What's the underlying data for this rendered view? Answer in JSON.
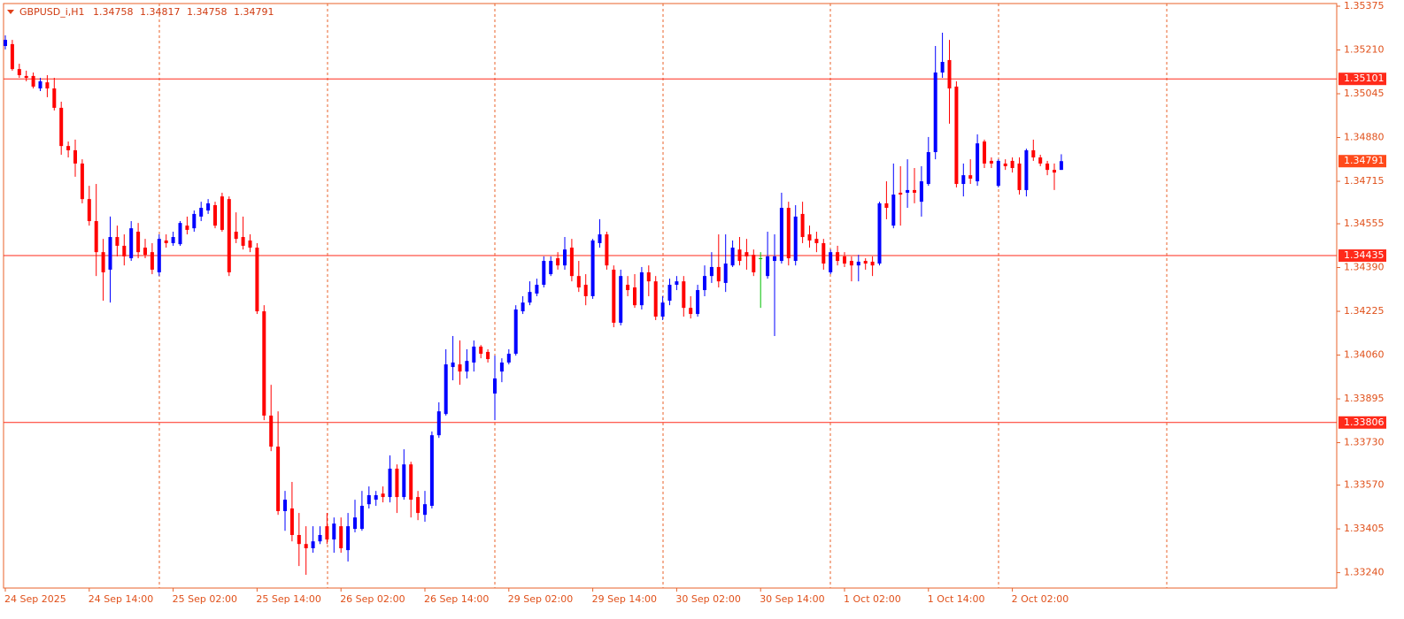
{
  "chart_data": {
    "type": "candlestick",
    "symbol": "GBPUSD_i,H1",
    "categories": [
      "24 Sep 2025",
      null,
      null,
      null,
      null,
      null,
      null,
      null,
      null,
      null,
      null,
      null,
      "24 Sep 14:00",
      null,
      null,
      null,
      null,
      null,
      null,
      null,
      null,
      null,
      null,
      null,
      "25 Sep 02:00",
      null,
      null,
      null,
      null,
      null,
      null,
      null,
      null,
      null,
      null,
      null,
      "25 Sep 14:00",
      null,
      null,
      null,
      null,
      null,
      null,
      null,
      null,
      null,
      null,
      null,
      "26 Sep 02:00",
      null,
      null,
      null,
      null,
      null,
      null,
      null,
      null,
      null,
      null,
      null,
      "26 Sep 14:00",
      null,
      null,
      null,
      null,
      null,
      null,
      null,
      null,
      null,
      null,
      null,
      "29 Sep 02:00",
      null,
      null,
      null,
      null,
      null,
      null,
      null,
      null,
      null,
      null,
      null,
      "29 Sep 14:00",
      null,
      null,
      null,
      null,
      null,
      null,
      null,
      null,
      null,
      null,
      null,
      "30 Sep 02:00",
      null,
      null,
      null,
      null,
      null,
      null,
      null,
      null,
      null,
      null,
      null,
      "30 Sep 14:00",
      null,
      null,
      null,
      null,
      null,
      null,
      null,
      null,
      null,
      null,
      null,
      "1 Oct 02:00",
      null,
      null,
      null,
      null,
      null,
      null,
      null,
      null,
      null,
      null,
      null,
      "1 Oct 14:00",
      null,
      null,
      null,
      null,
      null,
      null,
      null,
      null,
      null,
      null,
      null,
      "2 Oct 02:00",
      null,
      null,
      null,
      null,
      null,
      null,
      null
    ],
    "open": [
      1.35225,
      1.35232,
      1.35138,
      1.35112,
      1.35112,
      1.35065,
      1.35088,
      1.35065,
      1.34992,
      1.34848,
      1.34832,
      1.34782,
      1.34648,
      1.34565,
      1.34448,
      1.34382,
      1.34505,
      1.34472,
      1.34425,
      1.34525,
      1.34465,
      1.34448,
      1.34372,
      1.34492,
      1.34482,
      1.34478,
      1.34548,
      1.34538,
      1.34582,
      1.34605,
      1.34625,
      1.34658,
      1.34648,
      1.34525,
      1.34505,
      1.34492,
      1.34465,
      1.34225,
      1.33832,
      1.33715,
      1.33472,
      1.33482,
      1.33382,
      1.33348,
      1.33332,
      1.33358,
      1.33415,
      1.33365,
      1.33415,
      1.33325,
      1.33405,
      1.33405,
      1.33498,
      1.33515,
      1.33538,
      1.33525,
      1.33632,
      1.33525,
      1.33648,
      1.33525,
      1.33458,
      1.33492,
      1.33758,
      1.33838,
      1.34015,
      1.34025,
      1.33998,
      1.34032,
      1.34092,
      1.34072,
      1.33915,
      1.33998,
      1.34032,
      1.34065,
      1.34225,
      1.34258,
      1.34292,
      1.34325,
      1.34365,
      1.34425,
      1.34398,
      1.34465,
      1.34358,
      1.34325,
      1.34282,
      1.34482,
      1.34515,
      1.34382,
      1.34182,
      1.34325,
      1.34315,
      1.34248,
      1.34372,
      1.34338,
      1.34205,
      1.34265,
      1.34325,
      1.34338,
      1.34238,
      1.34215,
      1.34305,
      1.34358,
      1.34392,
      1.34332,
      1.34398,
      1.34458,
      1.34448,
      1.34438,
      1.34425,
      1.34358,
      1.34415,
      1.34415,
      1.34615,
      1.34415,
      1.34592,
      1.34515,
      1.34498,
      1.34482,
      1.34372,
      1.34448,
      1.34432,
      1.34415,
      1.34398,
      1.34415,
      1.34412,
      1.34405,
      1.34632,
      1.34548,
      1.34672,
      1.34672,
      1.34682,
      1.34638,
      1.34705,
      1.34825,
      1.35125,
      1.35172,
      1.35072,
      1.34705,
      1.34738,
      1.34715,
      1.34865,
      1.34792,
      1.34698,
      1.34782,
      1.34792,
      1.34782,
      1.34682,
      1.34832,
      1.34805,
      1.34782,
      1.34758,
      1.34758
    ],
    "high": [
      1.35265,
      1.35248,
      1.35158,
      1.35132,
      1.35125,
      1.35105,
      1.35115,
      1.35105,
      1.35015,
      1.34865,
      1.34872,
      1.34798,
      1.34698,
      1.34705,
      1.34498,
      1.34582,
      1.34548,
      1.34515,
      1.34565,
      1.34558,
      1.34498,
      1.34482,
      1.34515,
      1.34515,
      1.34525,
      1.34565,
      1.34582,
      1.34605,
      1.34638,
      1.34648,
      1.34638,
      1.34672,
      1.34658,
      1.34598,
      1.34582,
      1.34515,
      1.34482,
      1.34248,
      1.33948,
      1.33848,
      1.33548,
      1.33582,
      1.33465,
      1.33415,
      1.33415,
      1.33415,
      1.33465,
      1.33448,
      1.33448,
      1.33465,
      1.33515,
      1.33548,
      1.33565,
      1.33548,
      1.33565,
      1.33682,
      1.33648,
      1.33705,
      1.33658,
      1.33548,
      1.33548,
      1.33772,
      1.33882,
      1.34082,
      1.34132,
      1.34115,
      1.34082,
      1.34115,
      1.34098,
      1.34082,
      1.34058,
      1.34048,
      1.34082,
      1.34248,
      1.34282,
      1.34338,
      1.34348,
      1.34432,
      1.34432,
      1.34448,
      1.34505,
      1.34498,
      1.34415,
      1.34365,
      1.34498,
      1.34572,
      1.34525,
      1.34398,
      1.34382,
      1.34358,
      1.34365,
      1.34392,
      1.34398,
      1.34358,
      1.34282,
      1.34348,
      1.34358,
      1.34358,
      1.34282,
      1.34325,
      1.34398,
      1.34448,
      1.34515,
      1.34515,
      1.34492,
      1.34505,
      1.34498,
      1.34458,
      1.34448,
      1.34525,
      1.34515,
      1.34672,
      1.34638,
      1.34625,
      1.34638,
      1.34548,
      1.34525,
      1.34498,
      1.34458,
      1.34472,
      1.34448,
      1.34432,
      1.34438,
      1.34425,
      1.34432,
      1.34638,
      1.34715,
      1.34782,
      1.34772,
      1.34798,
      1.34765,
      1.34772,
      1.34882,
      1.35225,
      1.35275,
      1.35248,
      1.35092,
      1.34782,
      1.34798,
      1.34892,
      1.34872,
      1.34805,
      1.34798,
      1.34798,
      1.34805,
      1.34805,
      1.34838,
      1.34872,
      1.34815,
      1.34792,
      1.34782,
      1.34817
    ],
    "low": [
      1.35212,
      1.35132,
      1.35105,
      1.35092,
      1.35065,
      1.35055,
      1.35032,
      1.34982,
      1.34815,
      1.34805,
      1.34732,
      1.34632,
      1.34548,
      1.34358,
      1.34265,
      1.34258,
      1.34432,
      1.34398,
      1.34415,
      1.34425,
      1.34425,
      1.34365,
      1.34358,
      1.34465,
      1.34472,
      1.34472,
      1.34515,
      1.34525,
      1.34565,
      1.34592,
      1.34538,
      1.34525,
      1.34358,
      1.34482,
      1.34458,
      1.34448,
      1.34215,
      1.33815,
      1.33698,
      1.33458,
      1.33398,
      1.33358,
      1.33265,
      1.33232,
      1.33315,
      1.33348,
      1.33348,
      1.33315,
      1.33315,
      1.33282,
      1.33392,
      1.33398,
      1.33482,
      1.33492,
      1.33505,
      1.33505,
      1.33465,
      1.33515,
      1.33448,
      1.33438,
      1.33432,
      1.33482,
      1.33748,
      1.33832,
      1.33965,
      1.33948,
      1.33972,
      1.33998,
      1.34048,
      1.34032,
      1.33815,
      1.33958,
      1.34025,
      1.34058,
      1.34215,
      1.34248,
      1.34282,
      1.34315,
      1.34358,
      1.34382,
      1.34382,
      1.34338,
      1.34298,
      1.34248,
      1.34272,
      1.34465,
      1.34382,
      1.34165,
      1.34172,
      1.34282,
      1.34238,
      1.34232,
      1.34282,
      1.34192,
      1.34192,
      1.34248,
      1.34305,
      1.34205,
      1.34198,
      1.34205,
      1.34282,
      1.34332,
      1.34315,
      1.34298,
      1.34392,
      1.34398,
      1.34382,
      1.34358,
      1.34238,
      1.34348,
      1.34132,
      1.34405,
      1.34398,
      1.34398,
      1.34482,
      1.34465,
      1.34448,
      1.34382,
      1.34365,
      1.34398,
      1.34392,
      1.34338,
      1.34338,
      1.34382,
      1.34358,
      1.34398,
      1.34572,
      1.34538,
      1.34548,
      1.34615,
      1.34632,
      1.34582,
      1.34698,
      1.34798,
      1.35105,
      1.34932,
      1.34692,
      1.34658,
      1.34705,
      1.34698,
      1.34765,
      1.34765,
      1.34692,
      1.34758,
      1.34748,
      1.34665,
      1.34658,
      1.34792,
      1.34772,
      1.34738,
      1.34682,
      1.34758
    ],
    "close": [
      1.35248,
      1.35138,
      1.35115,
      1.35105,
      1.35072,
      1.35092,
      1.35065,
      1.34992,
      1.34848,
      1.34832,
      1.34782,
      1.34648,
      1.34565,
      1.34448,
      1.34372,
      1.34505,
      1.34472,
      1.34432,
      1.34538,
      1.34448,
      1.34438,
      1.34382,
      1.34498,
      1.34482,
      1.34505,
      1.34558,
      1.34532,
      1.34592,
      1.34615,
      1.34632,
      1.34548,
      1.34532,
      1.34372,
      1.34498,
      1.34472,
      1.34465,
      1.34225,
      1.33832,
      1.33715,
      1.33472,
      1.33515,
      1.33382,
      1.33348,
      1.33332,
      1.33358,
      1.33382,
      1.33365,
      1.33425,
      1.33332,
      1.33415,
      1.33448,
      1.33492,
      1.33532,
      1.33532,
      1.33525,
      1.33632,
      1.33525,
      1.33648,
      1.33515,
      1.33465,
      1.33498,
      1.33758,
      1.33848,
      1.34025,
      1.34032,
      1.33998,
      1.34038,
      1.34092,
      1.34065,
      1.34045,
      1.33972,
      1.34032,
      1.34065,
      1.34232,
      1.34258,
      1.34298,
      1.34325,
      1.34415,
      1.34415,
      1.34398,
      1.34458,
      1.34358,
      1.34315,
      1.34282,
      1.34492,
      1.34515,
      1.34398,
      1.34182,
      1.34358,
      1.34305,
      1.34248,
      1.34372,
      1.34338,
      1.34205,
      1.34258,
      1.34325,
      1.34338,
      1.34238,
      1.34215,
      1.34305,
      1.34358,
      1.34392,
      1.34338,
      1.34405,
      1.34465,
      1.34415,
      1.34432,
      1.34372,
      1.34425,
      1.34432,
      1.34432,
      1.34615,
      1.34425,
      1.34582,
      1.34505,
      1.34492,
      1.34482,
      1.34405,
      1.34448,
      1.34415,
      1.34405,
      1.34398,
      1.34412,
      1.34405,
      1.34398,
      1.34632,
      1.34615,
      1.34665,
      1.34665,
      1.34682,
      1.34672,
      1.34715,
      1.34825,
      1.35125,
      1.35165,
      1.35065,
      1.34705,
      1.34738,
      1.34725,
      1.34858,
      1.34782,
      1.34782,
      1.34792,
      1.34772,
      1.34765,
      1.34682,
      1.34832,
      1.34805,
      1.34782,
      1.34758,
      1.34748,
      1.34791
    ],
    "ylim": [
      1.33182,
      1.35385
    ],
    "yticks": [
      1.35375,
      {
        "value": 1.3521,
        "label": "1.35210"
      },
      1.35045,
      {
        "value": 1.3488,
        "label": "1.34880"
      },
      1.34715,
      1.34555,
      {
        "value": 1.3439,
        "label": "1.34390"
      },
      1.34225,
      {
        "value": 1.3406,
        "label": "1.34060"
      },
      1.33895,
      {
        "value": 1.3373,
        "label": "1.33730"
      },
      {
        "value": 1.3357,
        "label": "1.33570"
      },
      1.33405,
      {
        "value": 1.3324,
        "label": "1.33240"
      }
    ],
    "levels": [
      1.35101,
      1.34435,
      1.33806
    ],
    "up_color": "#0000ff",
    "down_color": "#ff0000",
    "doji_color": "#00c000",
    "level_color": "#ff2a1a"
  }
}
